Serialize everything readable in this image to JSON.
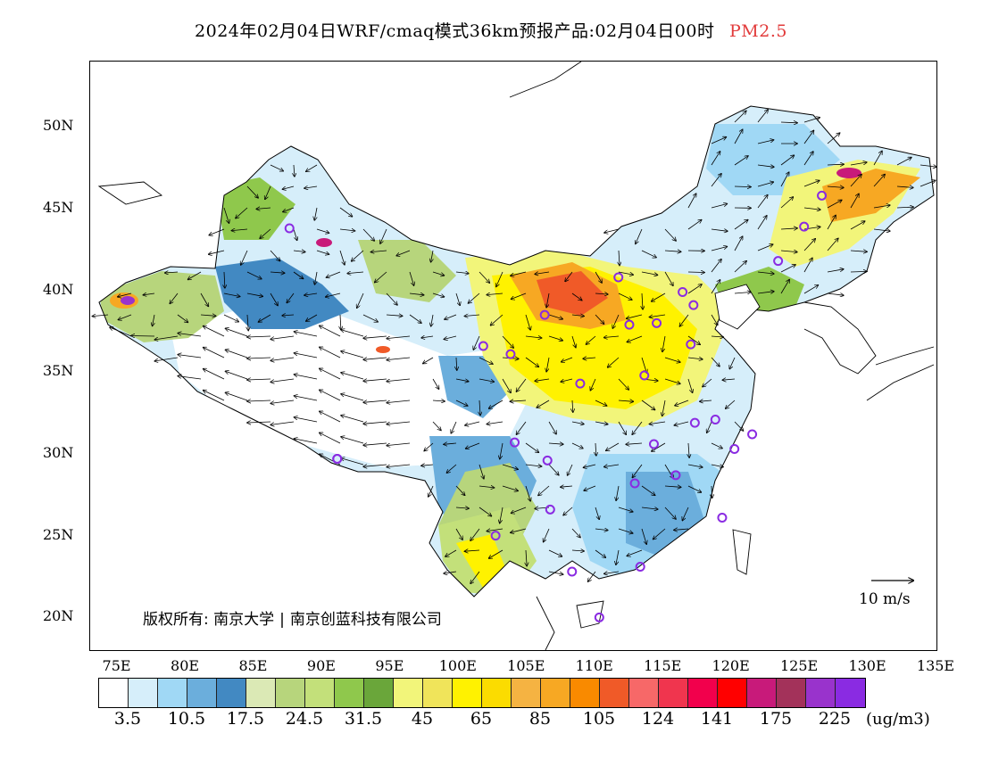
{
  "title": {
    "main": "2024年02月04日WRF/cmaq模式36km预报产品:02月04日00时",
    "variable": "PM2.5"
  },
  "copyright": {
    "prefix": "版权所有:",
    "org1": "南京大学",
    "org2": "南京创蓝科技有限公司"
  },
  "wind_scale": {
    "label": "10 m/s"
  },
  "axes": {
    "lat_labels": [
      "50N",
      "45N",
      "40N",
      "35N",
      "30N",
      "25N",
      "20N"
    ],
    "lon_labels": [
      "75E",
      "80E",
      "85E",
      "90E",
      "95E",
      "100E",
      "105E",
      "110E",
      "115E",
      "120E",
      "125E",
      "130E",
      "135E"
    ],
    "lon_range": [
      73,
      135
    ],
    "lat_range": [
      18,
      54
    ]
  },
  "legend": {
    "colors": [
      "#ffffff",
      "#d6eefa",
      "#a0d8f5",
      "#6baedc",
      "#4289c2",
      "#dbe9b5",
      "#b7d57c",
      "#c3e07a",
      "#8fc84c",
      "#6aa63a",
      "#f2f57a",
      "#f0e45a",
      "#fff200",
      "#fbdc00",
      "#f5b342",
      "#f7a823",
      "#f98a00",
      "#f05a28",
      "#f76868",
      "#f0354e",
      "#f2004c",
      "#ff0000",
      "#c81a7a",
      "#a3325a",
      "#9933cc",
      "#8a2be2"
    ],
    "labels": [
      "3.5",
      "10.5",
      "17.5",
      "24.5",
      "31.5",
      "45",
      "65",
      "85",
      "105",
      "124",
      "141",
      "175",
      "225"
    ],
    "unit": "(ug/m3)"
  },
  "stations": [
    {
      "lon": 87.6,
      "lat": 43.8
    },
    {
      "lon": 91.1,
      "lat": 29.7
    },
    {
      "lon": 101.8,
      "lat": 36.6
    },
    {
      "lon": 103.8,
      "lat": 36.1
    },
    {
      "lon": 106.3,
      "lat": 38.5
    },
    {
      "lon": 111.7,
      "lat": 40.8
    },
    {
      "lon": 112.5,
      "lat": 37.9
    },
    {
      "lon": 114.5,
      "lat": 38.0
    },
    {
      "lon": 116.4,
      "lat": 39.9
    },
    {
      "lon": 117.2,
      "lat": 39.1
    },
    {
      "lon": 117.0,
      "lat": 36.7
    },
    {
      "lon": 113.6,
      "lat": 34.8
    },
    {
      "lon": 108.9,
      "lat": 34.3
    },
    {
      "lon": 104.1,
      "lat": 30.7
    },
    {
      "lon": 106.5,
      "lat": 29.6
    },
    {
      "lon": 106.7,
      "lat": 26.6
    },
    {
      "lon": 102.7,
      "lat": 25.0
    },
    {
      "lon": 108.3,
      "lat": 22.8
    },
    {
      "lon": 113.3,
      "lat": 23.1
    },
    {
      "lon": 110.3,
      "lat": 20.0
    },
    {
      "lon": 112.9,
      "lat": 28.2
    },
    {
      "lon": 114.3,
      "lat": 30.6
    },
    {
      "lon": 115.9,
      "lat": 28.7
    },
    {
      "lon": 117.3,
      "lat": 31.9
    },
    {
      "lon": 118.8,
      "lat": 32.1
    },
    {
      "lon": 120.2,
      "lat": 30.3
    },
    {
      "lon": 121.5,
      "lat": 31.2
    },
    {
      "lon": 119.3,
      "lat": 26.1
    },
    {
      "lon": 123.4,
      "lat": 41.8
    },
    {
      "lon": 125.3,
      "lat": 43.9
    },
    {
      "lon": 126.6,
      "lat": 45.8
    },
    {
      "lon": 91.1,
      "lat": 29.7
    }
  ],
  "map_colors": {
    "low": "#d6eefa",
    "blue": "#6baedc",
    "deepblue": "#4289c2",
    "green": "#b7d57c",
    "darkgreen": "#8fc84c",
    "yellow": "#fff200",
    "lightyellow": "#f2f57a",
    "orange": "#f7a823",
    "redorange": "#f05a28",
    "magenta": "#c81a7a",
    "purple": "#9933cc",
    "station": "#8a2be2"
  }
}
